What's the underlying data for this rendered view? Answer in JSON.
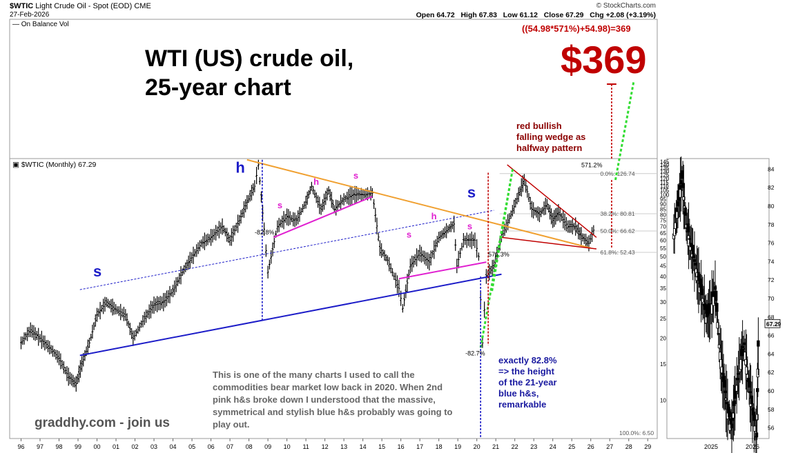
{
  "header": {
    "symbol": "$WTIC",
    "description": "Light Crude Oil - Spot (EOD)",
    "exchange": "CME",
    "date": "27-Feb-2026",
    "brand": "© StockCharts.com",
    "open_label": "Open",
    "open": "64.72",
    "high_label": "High",
    "high": "67.83",
    "low_label": "Low",
    "low": "61.12",
    "close_label": "Close",
    "close": "67.29",
    "chg_label": "Chg",
    "chg": "+2.08 (+3.19%)"
  },
  "obv_label": "— On Balance Vol",
  "panel_label": "$WTIC (Monthly) 67.29",
  "annotations": {
    "title_line1": "WTI (US) crude oil,",
    "title_line2": "25-year chart",
    "formula": "((54.98*571%)+54.98)=369",
    "target": "$369",
    "wedge_line1": "red bullish",
    "wedge_line2": "falling wedge as",
    "wedge_line3": "halfway pattern",
    "note": "This is one of the many charts I used to call the commodities bear market low back in 2020.  When 2nd pink h&s broke down I understood that the massive, symmetrical and stylish blue h&s probably was going to play out.",
    "site": "graddhy.com - join us",
    "exact_line1": "exactly 82.8%",
    "exact_line2": "=> the height",
    "exact_line3": "of the 21-year",
    "exact_line4": "blue h&s,",
    "exact_line5": "remarkable",
    "pct_drop_2008": "-82.8%",
    "pct_drop_2020": "-82.7%",
    "pct_rise_2020": "571.3%",
    "pct_rise_target": "571.2%",
    "fib_100": "100.0%: 6.50",
    "fib_618": "61.8%: 52.43",
    "fib_50": "50.0%: 66.62",
    "fib_382": "38.2%: 80.81",
    "fib_0": "0.0%: 126.74",
    "blue_labels": [
      "s",
      "h",
      "s"
    ],
    "pink_labels": [
      "s",
      "h",
      "s",
      "s",
      "h",
      "s"
    ]
  },
  "colors": {
    "price": "#000000",
    "blue_neckline": "#1c1cc8",
    "orange_trend": "#f0a030",
    "pink": "#e020d0",
    "red": "#c00000",
    "green": "#33dd33"
  },
  "chart_data": [
    {
      "type": "line",
      "title": "$WTIC (Monthly) 67.29",
      "x_ticks": [
        "96",
        "97",
        "98",
        "99",
        "00",
        "01",
        "02",
        "03",
        "04",
        "05",
        "06",
        "07",
        "08",
        "09",
        "10",
        "11",
        "12",
        "13",
        "14",
        "15",
        "16",
        "17",
        "18",
        "19",
        "20",
        "21",
        "22",
        "23",
        "24",
        "25",
        "26",
        "27",
        "28",
        "29"
      ],
      "y_scale": "log",
      "y_ticks": [
        10,
        15,
        20,
        25,
        30,
        35,
        40,
        45,
        50,
        55,
        60,
        65,
        70,
        75,
        80,
        85,
        90,
        95,
        100,
        105,
        110,
        115,
        120,
        125,
        130,
        135,
        140,
        145,
        150
      ],
      "series": [
        {
          "x": [
            1996.0,
            1996.5,
            1997.0,
            1997.5,
            1998.0,
            1998.5,
            1998.9,
            1999.2,
            1999.6,
            2000.0,
            2000.5,
            2000.9,
            2001.5,
            2001.9,
            2002.5,
            2003.0,
            2003.5,
            2004.0,
            2004.5,
            2004.9,
            2005.5,
            2006.0,
            2006.6,
            2007.0,
            2007.5,
            2007.9,
            2008.3,
            2008.5,
            2008.8,
            2009.0,
            2009.5,
            2010.0,
            2010.5,
            2011.0,
            2011.3,
            2011.8,
            2012.2,
            2012.5,
            2013.0,
            2013.5,
            2014.0,
            2014.5,
            2014.9,
            2015.3,
            2015.9,
            2016.1,
            2016.5,
            2017.0,
            2017.5,
            2018.0,
            2018.8,
            2018.95,
            2019.3,
            2019.9,
            2020.1,
            2020.3,
            2020.5,
            2020.9,
            2021.3,
            2021.8,
            2022.2,
            2022.5,
            2022.9,
            2023.3,
            2023.7,
            2024.0,
            2024.3,
            2024.8,
            2025.2,
            2025.5,
            2025.9,
            2026.15
          ],
          "y": [
            19,
            22,
            20,
            18,
            16,
            13,
            12,
            15,
            19,
            26,
            30,
            28,
            26,
            20,
            25,
            29,
            30,
            34,
            42,
            48,
            58,
            62,
            70,
            60,
            75,
            92,
            110,
            140,
            68,
            42,
            70,
            78,
            75,
            92,
            110,
            85,
            105,
            85,
            95,
            100,
            100,
            102,
            55,
            48,
            35,
            28,
            45,
            52,
            47,
            62,
            72,
            45,
            60,
            60,
            50,
            19,
            40,
            45,
            62,
            80,
            100,
            118,
            85,
            80,
            90,
            75,
            82,
            70,
            70,
            63,
            58,
            67.29
          ]
        }
      ],
      "ylim": [
        6.5,
        150
      ],
      "xlim": [
        1995.4,
        2029.5
      ]
    },
    {
      "type": "line",
      "title": "On Balance Vol",
      "x_ticks": [
        "2025",
        "2026"
      ],
      "y_ticks": [
        56,
        58,
        60,
        62,
        64,
        66,
        68,
        70,
        72,
        74,
        76,
        78,
        80,
        82,
        84
      ],
      "series": [
        {
          "x": [
            2024.1,
            2024.2,
            2024.3,
            2024.4,
            2024.5,
            2024.6,
            2024.7,
            2024.8,
            2024.9,
            2025.0,
            2025.1,
            2025.2,
            2025.3,
            2025.4,
            2025.5,
            2025.6,
            2025.7,
            2025.8,
            2025.9,
            2026.0,
            2026.1,
            2026.15
          ],
          "y": [
            77,
            80,
            83,
            78,
            76,
            74,
            72,
            70,
            68,
            69,
            71,
            65,
            61,
            58,
            56,
            60,
            63,
            65,
            61,
            58,
            55,
            67.29
          ]
        }
      ],
      "ylim": [
        55,
        85
      ]
    }
  ]
}
